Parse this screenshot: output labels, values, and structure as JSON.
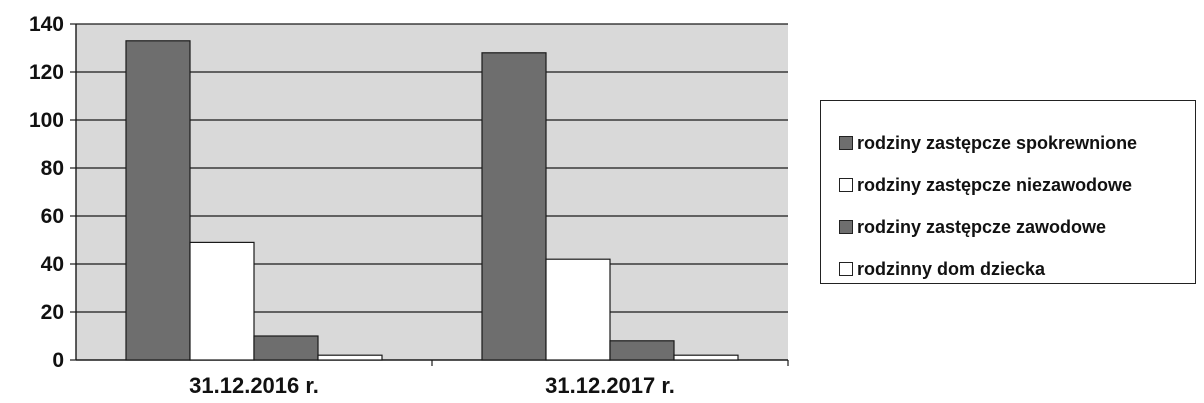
{
  "chart_data": {
    "type": "bar",
    "categories": [
      "31.12.2016 r.",
      "31.12.2017 r."
    ],
    "series": [
      {
        "name": "rodziny zastępcze spokrewnione",
        "values": [
          133,
          128
        ],
        "color": "#6e6e6e"
      },
      {
        "name": "rodziny zastępcze niezawodowe",
        "values": [
          49,
          42
        ],
        "color": "#ffffff"
      },
      {
        "name": "rodziny zastępcze zawodowe",
        "values": [
          10,
          8
        ],
        "color": "#6e6e6e"
      },
      {
        "name": "rodzinny dom dziecka",
        "values": [
          2,
          2
        ],
        "color": "#ffffff"
      }
    ],
    "ylim": [
      0,
      140
    ],
    "yticks": [
      "0",
      "20",
      "40",
      "60",
      "80",
      "100",
      "120",
      "140"
    ],
    "title": "",
    "xlabel": "",
    "ylabel": "",
    "grid": true,
    "legend_position": "right",
    "plot_background": "#d9d9d9"
  }
}
